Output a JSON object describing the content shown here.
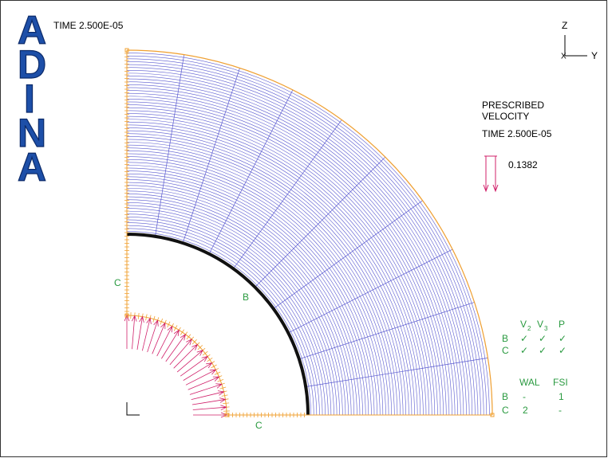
{
  "logo": [
    "A",
    "D",
    "I",
    "N",
    "A"
  ],
  "header": {
    "time": "TIME 2.500E-05"
  },
  "axes": {
    "z": "Z",
    "x": "X",
    "y": "Y"
  },
  "legend": {
    "title": [
      "PRESCRIBED",
      "VELOCITY"
    ],
    "time": "TIME 2.500E-05",
    "value": "0.1382"
  },
  "labels": {
    "left": "C",
    "arc": "B",
    "bottom": "C"
  },
  "table1": {
    "headers": [
      {
        "base": "V",
        "sub": "2"
      },
      {
        "base": "V",
        "sub": "3"
      },
      "P"
    ],
    "rows": [
      [
        "B",
        "✓",
        "✓",
        "✓"
      ],
      [
        "C",
        "✓",
        "✓",
        "✓"
      ]
    ]
  },
  "table2": {
    "headers": [
      "WAL",
      "FSI"
    ],
    "rows": [
      [
        "B",
        "-",
        "1"
      ],
      [
        "C",
        "2",
        "-"
      ]
    ]
  }
}
